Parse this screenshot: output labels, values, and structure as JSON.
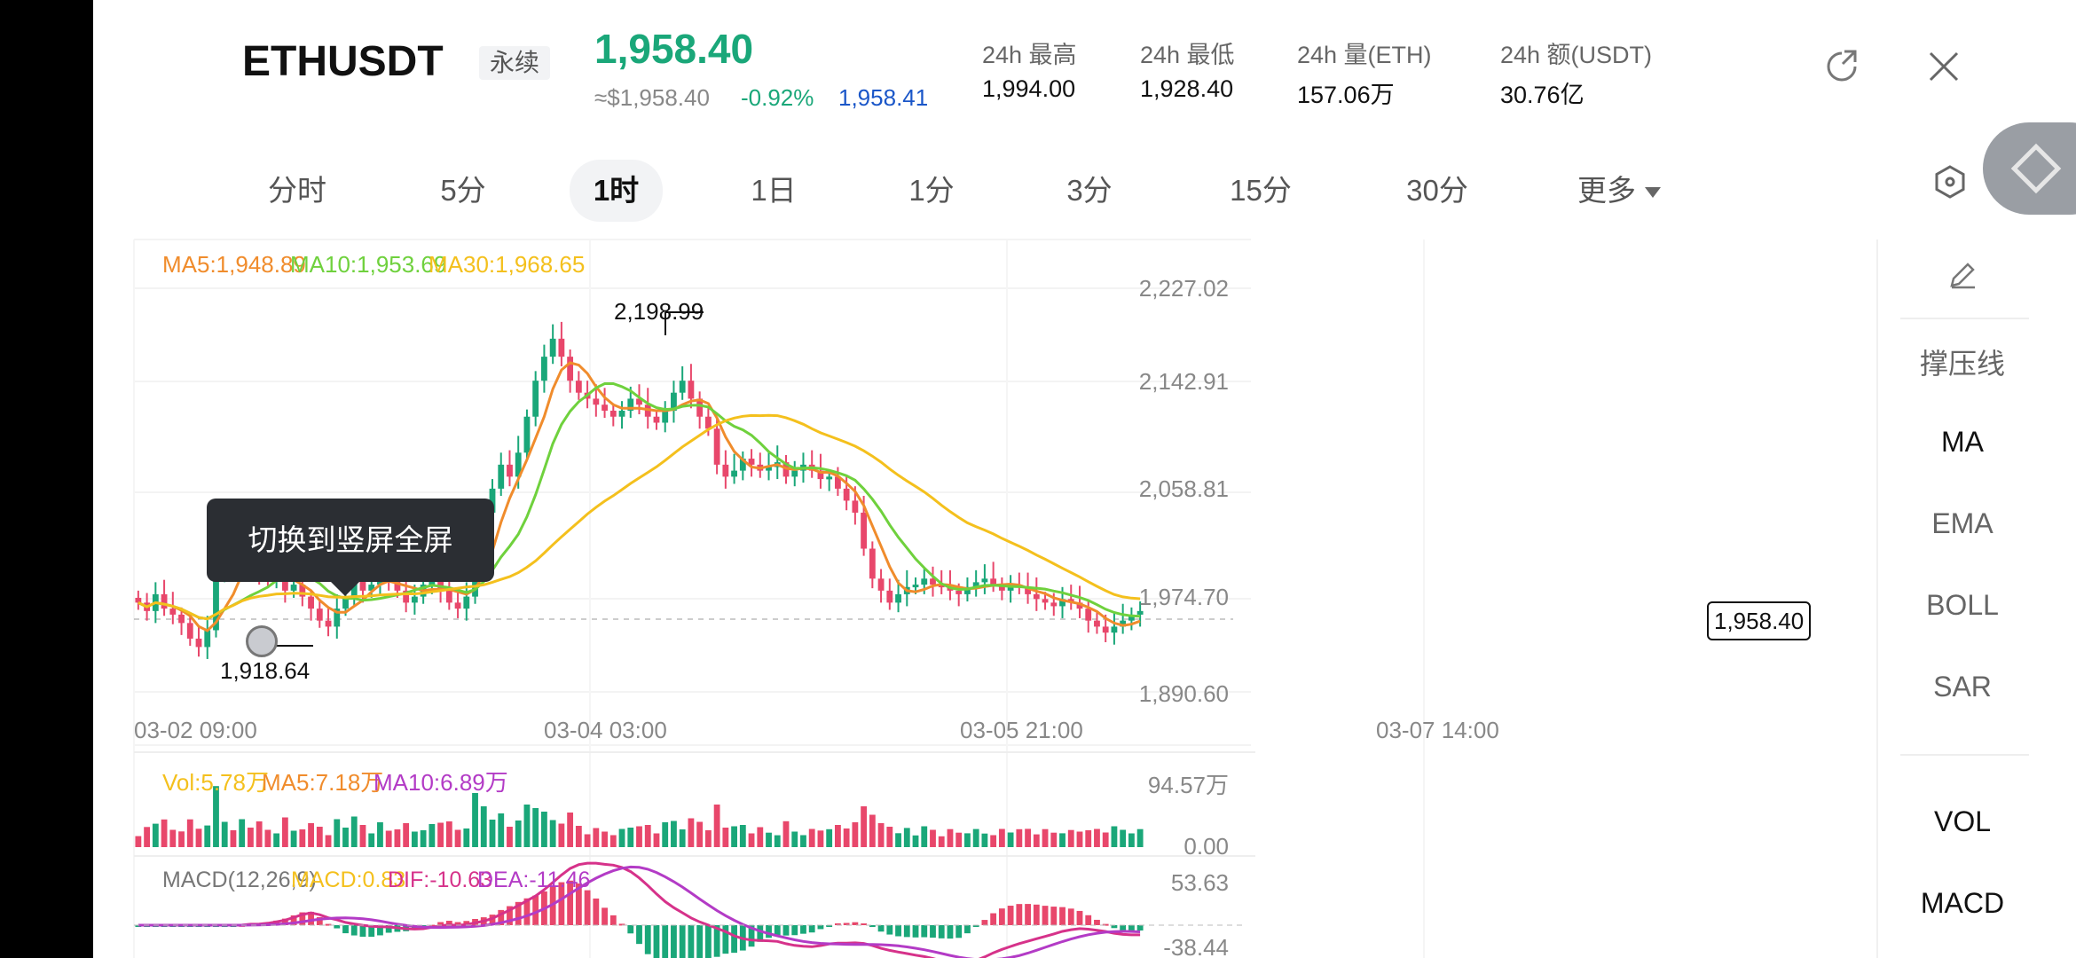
{
  "header": {
    "symbol": "ETHUSDT",
    "type_badge": "永续",
    "last_price": "1,958.40",
    "usd_price": "≈$1,958.40",
    "change_pct": "-0.92%",
    "mark_price": "1,958.41",
    "stats": [
      {
        "label": "24h  最高",
        "value": "1,994.00"
      },
      {
        "label": "24h  最低",
        "value": "1,928.40"
      },
      {
        "label": "24h  量(ETH)",
        "value": "157.06万"
      },
      {
        "label": "24h  额(USDT)",
        "value": "30.76亿"
      }
    ],
    "colors": {
      "up": "#1aa779",
      "down": "#e8476b",
      "mark": "#1a56c8"
    }
  },
  "tabs": [
    {
      "label": "分时",
      "active": false
    },
    {
      "label": "5分",
      "active": false
    },
    {
      "label": "1时",
      "active": true
    },
    {
      "label": "1日",
      "active": false
    },
    {
      "label": "1分",
      "active": false
    },
    {
      "label": "3分",
      "active": false
    },
    {
      "label": "15分",
      "active": false
    },
    {
      "label": "30分",
      "active": false
    },
    {
      "label": "更多",
      "active": false
    }
  ],
  "legend": {
    "ma5": "MA5:1,948.89",
    "ma10": "MA10:1,953.69",
    "ma30": "MA30:1,968.65",
    "vol": "Vol:5.78万",
    "vol_ma5": "MA5:7.18万",
    "vol_ma10": "MA10:6.89万",
    "macd_params": "MACD(12,26,9)",
    "macd": "MACD:0.83",
    "dif": "DIF:-10.63",
    "dea": "DEA:-11.46"
  },
  "tooltip": {
    "text": "切换到竖屏全屏"
  },
  "sidebar": {
    "items": [
      "撑压线",
      "MA",
      "EMA",
      "BOLL",
      "SAR",
      "VOL",
      "MACD"
    ]
  },
  "chart_data": {
    "type": "candlestick",
    "price_axis_ticks": [
      "2,227.02",
      "2,142.91",
      "2,058.81",
      "1,974.70",
      "1,890.60"
    ],
    "price_axis_values": [
      2227.02,
      2142.91,
      2058.81,
      1974.7,
      1890.6
    ],
    "x_tick_labels": [
      "03-02 09:00",
      "03-04 03:00",
      "03-05 21:00",
      "03-07 14:00"
    ],
    "high_label": "2,198.99",
    "low_label": "1,918.64",
    "current_price_label": "1,958.40",
    "vol_axis_ticks": [
      "94.57万",
      "0.00"
    ],
    "macd_axis_ticks": [
      "53.63",
      "-38.44"
    ],
    "series": [
      {
        "name": "MA5",
        "color": "#f08c2c"
      },
      {
        "name": "MA10",
        "color": "#6fd13d"
      },
      {
        "name": "MA30",
        "color": "#f4c01d"
      }
    ],
    "close_path": [
      1965,
      1958,
      1972,
      1960,
      1955,
      1948,
      1935,
      1928,
      1942,
      1990,
      2005,
      1995,
      2010,
      2000,
      1990,
      1985,
      1990,
      1975,
      1980,
      1970,
      1960,
      1950,
      1945,
      1960,
      1970,
      1985,
      1975,
      1980,
      1990,
      1985,
      1975,
      1965,
      1970,
      1980,
      1990,
      1975,
      1965,
      1960,
      1970,
      2010,
      2040,
      2060,
      2080,
      2070,
      2090,
      2120,
      2150,
      2170,
      2185,
      2170,
      2150,
      2140,
      2135,
      2130,
      2125,
      2120,
      2125,
      2135,
      2130,
      2120,
      2115,
      2125,
      2140,
      2150,
      2135,
      2120,
      2110,
      2080,
      2070,
      2075,
      2085,
      2080,
      2075,
      2078,
      2082,
      2070,
      2075,
      2080,
      2075,
      2068,
      2070,
      2060,
      2050,
      2040,
      2010,
      1985,
      1975,
      1965,
      1972,
      1978,
      1980,
      1985,
      1980,
      1978,
      1975,
      1972,
      1978,
      1982,
      1985,
      1980,
      1975,
      1980,
      1978,
      1972,
      1968,
      1965,
      1962,
      1968,
      1965,
      1960,
      1950,
      1945,
      1940,
      1945,
      1950,
      1955,
      1958
    ]
  }
}
